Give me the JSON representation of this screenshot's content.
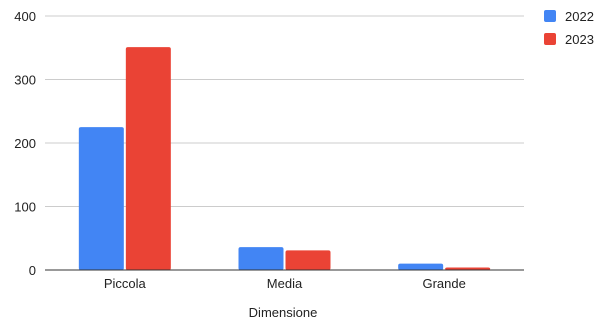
{
  "chart_data": {
    "type": "bar",
    "title": "",
    "xlabel": "Dimensione",
    "ylabel": "",
    "categories": [
      "Piccola",
      "Media",
      "Grande"
    ],
    "series": [
      {
        "name": "2022",
        "color": "#4285F4",
        "values": [
          225,
          36,
          10
        ]
      },
      {
        "name": "2023",
        "color": "#EA4335",
        "values": [
          351,
          31,
          4
        ]
      }
    ],
    "ylim": [
      0,
      400
    ],
    "yticks": [
      "0",
      "100",
      "200",
      "300",
      "400"
    ],
    "grid": true,
    "legend_position": "top-right"
  }
}
